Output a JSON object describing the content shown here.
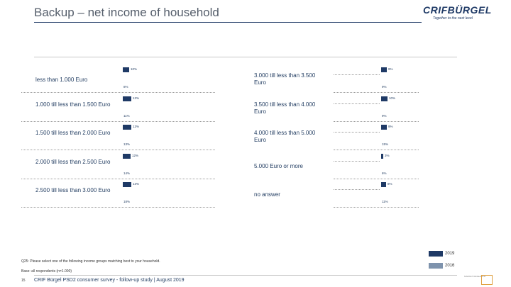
{
  "header": {
    "title": "Backup – net income of household",
    "brand": "CRIFBÜRGEL",
    "tagline": "Together to the next level"
  },
  "colors": {
    "s2019": "#1f3a66",
    "s2016": "#7e93ad"
  },
  "chart_data": {
    "type": "bar",
    "orientation": "horizontal",
    "title": "Backup – net income of household",
    "unit": "%",
    "categories": [
      "less than 1.000 Euro",
      "1.000 till less than 1.500 Euro",
      "1.500 till less than 2.000 Euro",
      "2.000 till less than 2.500 Euro",
      "2.500 till less than 3.000 Euro",
      "3.000 till less than 3.500 Euro",
      "3.500 till less than 4.000 Euro",
      "4.000 till less than 5.000 Euro",
      "5.000 Euro or more",
      "no answer"
    ],
    "series": [
      {
        "name": "2019",
        "values": [
          10,
          13,
          13,
          12,
          13,
          9,
          10,
          9,
          3,
          8
        ],
        "labels": [
          "10%",
          "13%",
          "13%",
          "12%",
          "13%",
          "9%",
          "10%",
          "9%",
          "3%",
          "8%"
        ]
      },
      {
        "name": "2016",
        "values": [
          8,
          11,
          13,
          14,
          18,
          9,
          9,
          15,
          6,
          11
        ],
        "labels": [
          "8%",
          "11%",
          "13%",
          "14%",
          "18%",
          "9%",
          "9%",
          "15%",
          "6%",
          "11%"
        ]
      }
    ]
  },
  "footnotes": {
    "question": "Q25: Please select one of the following income groups matching best to your household.",
    "base": "Base: all respondents (n=1.000)"
  },
  "footer": {
    "page": "15",
    "text": "CRIF Bürgel PSD2 consumer survey - follow-up study | August 2019"
  },
  "legend": {
    "items": [
      "2019",
      "2016"
    ]
  },
  "corner": {
    "text": "MARKET RESEARCH"
  }
}
